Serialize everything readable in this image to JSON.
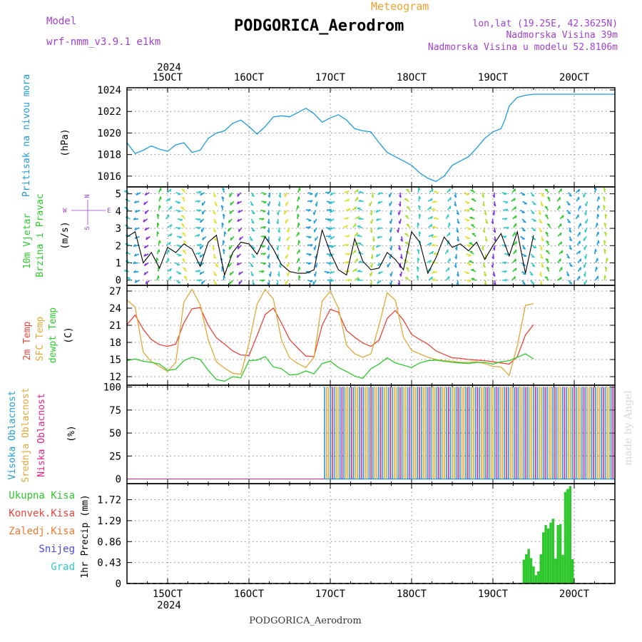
{
  "header": {
    "model_label": "Model",
    "model_name": "wrf-nmm_v3.9.1 e1km",
    "meteogram_label": "Meteogram",
    "station": "PODGORICA_Aerodrom",
    "lonlat": "lon,lat (19.25E, 42.3625N)",
    "elevation": "Nadmorska Visina 39m",
    "model_elevation": "Nadmorska Visina u modelu 52.8106m",
    "footer_station": "PODGORICA_Aerodrom",
    "watermark": "made by Angel",
    "year": "2024"
  },
  "colors": {
    "pressure": "#1e9bdc",
    "temp2m": "#e8453c",
    "sfc": "#e0a838",
    "dewpt": "#2ec82e",
    "high_cloud": "#1e9bdc",
    "mid_cloud": "#e0a838",
    "low_cloud": "#e0208c",
    "precip": "#2ec82e",
    "label_purple": "#a040d0",
    "label_orange": "#f0a030"
  },
  "chart_data": [
    {
      "type": "line",
      "panel": "pressure",
      "ylabel_lines": [
        "Pritisak na nivou mora"
      ],
      "unit": "(hPa)",
      "ylim": [
        1015,
        1024.2
      ],
      "yticks": [
        1016,
        1018,
        1020,
        1022,
        1024
      ],
      "x_days": [
        15,
        16,
        17,
        18,
        19,
        20
      ],
      "x_tick_labels": [
        "15OCT",
        "16OCT",
        "17OCT",
        "18OCT",
        "19OCT",
        "20OCT"
      ],
      "xlim": [
        14.5,
        20.5
      ],
      "series": [
        {
          "color_key": "pressure",
          "x": [
            14.5,
            14.6,
            14.7,
            14.8,
            14.9,
            15.0,
            15.1,
            15.2,
            15.3,
            15.4,
            15.5,
            15.6,
            15.7,
            15.8,
            15.9,
            16.0,
            16.1,
            16.2,
            16.3,
            16.4,
            16.5,
            16.6,
            16.7,
            16.8,
            16.9,
            17.0,
            17.1,
            17.2,
            17.3,
            17.4,
            17.5,
            17.6,
            17.7,
            17.8,
            17.9,
            18.0,
            18.1,
            18.2,
            18.3,
            18.4,
            18.5,
            18.6,
            18.7,
            18.8,
            18.9,
            19.0,
            19.1,
            19.15,
            19.2,
            19.3,
            19.4,
            19.5,
            19.6,
            19.7,
            19.8,
            19.9,
            20.0,
            20.1,
            20.2,
            20.3,
            20.4,
            20.5
          ],
          "y": [
            1019.1,
            1018.1,
            1018.4,
            1018.8,
            1018.5,
            1018.3,
            1018.9,
            1019.1,
            1018.2,
            1018.4,
            1019.5,
            1020.0,
            1020.2,
            1020.9,
            1021.2,
            1020.6,
            1019.9,
            1020.6,
            1021.5,
            1021.6,
            1021.5,
            1021.9,
            1022.3,
            1021.8,
            1021.0,
            1021.4,
            1021.7,
            1021.2,
            1020.4,
            1020.2,
            1020.1,
            1019.1,
            1018.2,
            1017.8,
            1017.4,
            1017.0,
            1016.3,
            1015.8,
            1015.5,
            1016.0,
            1017.0,
            1017.4,
            1017.8,
            1018.6,
            1019.5,
            1020.1,
            1020.4,
            1021.3,
            1022.5,
            1023.3,
            1023.5,
            1023.6,
            1023.6,
            1023.6,
            1023.6,
            1023.6,
            1023.6,
            1023.6,
            1023.6,
            1023.6,
            1023.6,
            1023.6
          ]
        }
      ]
    },
    {
      "type": "line",
      "panel": "wind",
      "ylabel_lines": [
        "10m Vjetar",
        "Brzina i Pravac"
      ],
      "unit": "(m/s)",
      "ylim": [
        -0.3,
        5.4
      ],
      "yticks": [
        0,
        1,
        2,
        3,
        4,
        5
      ],
      "compass": {
        "n": "N",
        "s": "S",
        "e": "E",
        "w": "W"
      },
      "series": [
        {
          "name": "speed",
          "color": "#000000",
          "x": [
            14.5,
            14.6,
            14.7,
            14.8,
            14.9,
            15.0,
            15.1,
            15.2,
            15.3,
            15.4,
            15.5,
            15.6,
            15.7,
            15.8,
            15.9,
            16.0,
            16.1,
            16.2,
            16.3,
            16.4,
            16.5,
            16.6,
            16.7,
            16.8,
            16.9,
            17.0,
            17.1,
            17.2,
            17.3,
            17.4,
            17.5,
            17.6,
            17.7,
            17.8,
            17.9,
            18.0,
            18.1,
            18.2,
            18.3,
            18.4,
            18.5,
            18.6,
            18.7,
            18.8,
            18.9,
            19.0,
            19.1,
            19.2,
            19.3,
            19.4,
            19.5
          ],
          "y": [
            2.5,
            2.8,
            1.0,
            1.6,
            0.7,
            1.9,
            1.6,
            2.1,
            1.8,
            0.8,
            2.2,
            2.6,
            0.3,
            1.6,
            2.2,
            2.1,
            1.5,
            2.5,
            1.8,
            0.9,
            0.5,
            0.4,
            0.4,
            0.6,
            2.9,
            1.6,
            0.6,
            0.3,
            2.4,
            1.1,
            0.6,
            0.7,
            1.6,
            1.2,
            0.6,
            2.8,
            2.2,
            0.4,
            1.3,
            2.5,
            1.9,
            2.1,
            1.7,
            2.2,
            1.2,
            2.0,
            2.7,
            1.4,
            2.8,
            0.4,
            2.6
          ]
        }
      ]
    },
    {
      "type": "line",
      "panel": "temperature",
      "ylabel_lines": [
        "2m Temp",
        "SFC Temp",
        "dewpt Temp"
      ],
      "unit": "(C)",
      "ylim": [
        10.5,
        28
      ],
      "yticks": [
        12,
        15,
        18,
        21,
        24,
        27
      ],
      "series": [
        {
          "name": "2m Temp",
          "color_key": "temp2m",
          "x": [
            14.5,
            14.6,
            14.7,
            14.8,
            14.9,
            15.0,
            15.1,
            15.2,
            15.3,
            15.4,
            15.5,
            15.6,
            15.7,
            15.8,
            15.9,
            16.0,
            16.1,
            16.2,
            16.3,
            16.4,
            16.5,
            16.6,
            16.7,
            16.8,
            16.9,
            17.0,
            17.1,
            17.2,
            17.3,
            17.4,
            17.5,
            17.6,
            17.7,
            17.8,
            17.9,
            18.0,
            18.1,
            18.2,
            18.3,
            18.4,
            18.5,
            18.6,
            18.7,
            18.8,
            18.9,
            19.0,
            19.1,
            19.2,
            19.3,
            19.4,
            19.5
          ],
          "y": [
            21.1,
            22.8,
            20.3,
            18.5,
            17.6,
            17.3,
            17.7,
            21.4,
            23.9,
            24.1,
            21.0,
            18.8,
            17.7,
            16.5,
            15.8,
            15.7,
            19.2,
            22.9,
            24.0,
            21.4,
            18.5,
            17.0,
            15.6,
            15.5,
            21.0,
            23.8,
            23.3,
            20.1,
            18.9,
            17.9,
            17.3,
            18.4,
            22.2,
            23.6,
            21.9,
            19.4,
            18.5,
            17.7,
            16.5,
            15.9,
            15.3,
            15.2,
            15.0,
            14.9,
            14.8,
            14.6,
            14.4,
            14.2,
            15.5,
            19.3,
            21.1
          ]
        },
        {
          "name": "SFC Temp",
          "color_key": "sfc",
          "x": [
            14.5,
            14.6,
            14.7,
            14.8,
            14.9,
            15.0,
            15.1,
            15.2,
            15.3,
            15.4,
            15.5,
            15.6,
            15.7,
            15.8,
            15.9,
            16.0,
            16.1,
            16.2,
            16.3,
            16.4,
            16.5,
            16.6,
            16.7,
            16.8,
            16.9,
            17.0,
            17.1,
            17.2,
            17.3,
            17.4,
            17.5,
            17.6,
            17.7,
            17.8,
            17.9,
            18.0,
            18.1,
            18.2,
            18.3,
            18.4,
            18.5,
            18.6,
            18.7,
            18.8,
            18.9,
            19.0,
            19.1,
            19.2,
            19.3,
            19.4,
            19.5
          ],
          "y": [
            25.4,
            24.2,
            16.3,
            14.6,
            13.8,
            12.9,
            14.5,
            25.1,
            27.3,
            24.6,
            18.4,
            14.6,
            13.5,
            12.6,
            12.4,
            17.8,
            24.7,
            27.3,
            25.6,
            18.4,
            15.3,
            14.3,
            13.6,
            15.4,
            25.2,
            27.0,
            24.0,
            17.5,
            16.0,
            15.4,
            16.0,
            21.0,
            26.7,
            25.4,
            18.9,
            16.6,
            16.0,
            15.4,
            15.0,
            14.8,
            14.7,
            14.5,
            14.5,
            14.6,
            14.3,
            13.8,
            13.7,
            12.2,
            17.4,
            24.5,
            24.8
          ]
        },
        {
          "name": "dewpt Temp",
          "color_key": "dewpt",
          "x": [
            14.5,
            14.6,
            14.7,
            14.8,
            14.9,
            15.0,
            15.1,
            15.2,
            15.3,
            15.4,
            15.5,
            15.6,
            15.7,
            15.8,
            15.9,
            16.0,
            16.1,
            16.2,
            16.3,
            16.4,
            16.5,
            16.6,
            16.7,
            16.8,
            16.9,
            17.0,
            17.1,
            17.2,
            17.3,
            17.4,
            17.5,
            17.6,
            17.7,
            17.8,
            17.9,
            18.0,
            18.1,
            18.2,
            18.3,
            18.4,
            18.5,
            18.6,
            18.7,
            18.8,
            18.9,
            19.0,
            19.1,
            19.2,
            19.3,
            19.4,
            19.5
          ],
          "y": [
            14.8,
            15.1,
            14.7,
            14.5,
            14.2,
            13.1,
            13.3,
            14.8,
            15.4,
            15.0,
            13.1,
            11.5,
            11.2,
            12.0,
            11.8,
            14.8,
            14.9,
            15.5,
            13.7,
            13.4,
            12.3,
            12.4,
            13.0,
            12.5,
            14.3,
            14.7,
            13.6,
            12.9,
            12.1,
            11.7,
            13.4,
            14.2,
            15.3,
            14.4,
            14.0,
            13.6,
            14.4,
            14.8,
            14.9,
            14.7,
            14.5,
            14.4,
            14.3,
            14.5,
            14.5,
            14.2,
            14.6,
            14.8,
            15.4,
            16.0,
            15.1
          ]
        }
      ]
    },
    {
      "type": "bar",
      "panel": "cloud",
      "ylabel_lines": [
        "Visoka Oblacnost",
        "Srednja Oblacnost",
        "Niska Oblacnost"
      ],
      "unit": "(%)",
      "ylim": [
        -5,
        102
      ],
      "yticks": [
        0,
        25,
        50,
        75,
        100
      ],
      "start_day": 16.93,
      "end_day": 20.5,
      "value": 100
    },
    {
      "type": "bar",
      "panel": "precip",
      "ylabel": "1hr Precip (mm)",
      "legend": [
        "Ukupna Kisa",
        "Konvek.Kisa",
        "Zaledj.Kisa",
        "Snijeg",
        "Grad"
      ],
      "legend_colors": [
        "#2ec82e",
        "#e8453c",
        "#f07830",
        "#4848e0",
        "#30c8c8"
      ],
      "ylim": [
        0,
        2.05
      ],
      "yticks": [
        0,
        0.43,
        0.86,
        1.29,
        1.72
      ],
      "ytick_labels": [
        "0",
        "0.43",
        "0.86",
        "1.29",
        "1.72"
      ],
      "x": [
        19.38,
        19.41,
        19.44,
        19.47,
        19.5,
        19.53,
        19.56,
        19.59,
        19.62,
        19.65,
        19.68,
        19.71,
        19.74,
        19.77,
        19.8,
        19.83,
        19.86,
        19.89,
        19.92,
        19.95,
        19.98
      ],
      "values": [
        0.49,
        0.6,
        0.71,
        0.52,
        0.35,
        0.17,
        0.25,
        0.6,
        1.05,
        1.2,
        1.13,
        1.25,
        1.33,
        0.51,
        1.2,
        1.22,
        0.59,
        1.88,
        1.94,
        2.0,
        0.5
      ]
    }
  ]
}
